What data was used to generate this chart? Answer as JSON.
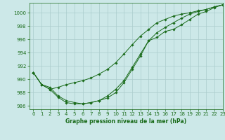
{
  "xlabel": "Graphe pression niveau de la mer (hPa)",
  "ylim": [
    985.5,
    1001.5
  ],
  "xlim": [
    -0.5,
    23
  ],
  "yticks": [
    986,
    988,
    990,
    992,
    994,
    996,
    998,
    1000
  ],
  "xticks": [
    0,
    1,
    2,
    3,
    4,
    5,
    6,
    7,
    8,
    9,
    10,
    11,
    12,
    13,
    14,
    15,
    16,
    17,
    18,
    19,
    20,
    21,
    22,
    23
  ],
  "bg_color": "#cce8e8",
  "grid_color": "#aacccc",
  "line_color": "#1a6b1a",
  "line1": [
    991.0,
    989.2,
    988.5,
    987.3,
    986.5,
    986.3,
    986.3,
    986.5,
    986.8,
    987.2,
    988.0,
    989.5,
    991.5,
    993.5,
    995.8,
    996.3,
    997.2,
    997.5,
    998.2,
    999.0,
    999.8,
    1000.2,
    1000.8,
    1001.2
  ],
  "line2": [
    991.0,
    989.2,
    988.5,
    988.8,
    989.2,
    989.5,
    989.8,
    990.2,
    990.8,
    991.5,
    992.5,
    993.8,
    995.2,
    996.5,
    997.5,
    998.5,
    999.0,
    999.5,
    999.8,
    1000.0,
    1000.3,
    1000.5,
    1000.9,
    1001.2
  ],
  "line3": [
    991.0,
    989.2,
    988.8,
    987.5,
    986.8,
    986.5,
    986.3,
    986.5,
    986.8,
    987.5,
    988.5,
    989.8,
    991.8,
    993.8,
    995.8,
    997.0,
    997.8,
    998.5,
    999.2,
    999.8,
    1000.2,
    1000.5,
    1000.9,
    1001.2
  ],
  "tick_fontsize": 5.0,
  "xlabel_fontsize": 5.5,
  "marker_size": 1.8,
  "line_width": 0.7
}
